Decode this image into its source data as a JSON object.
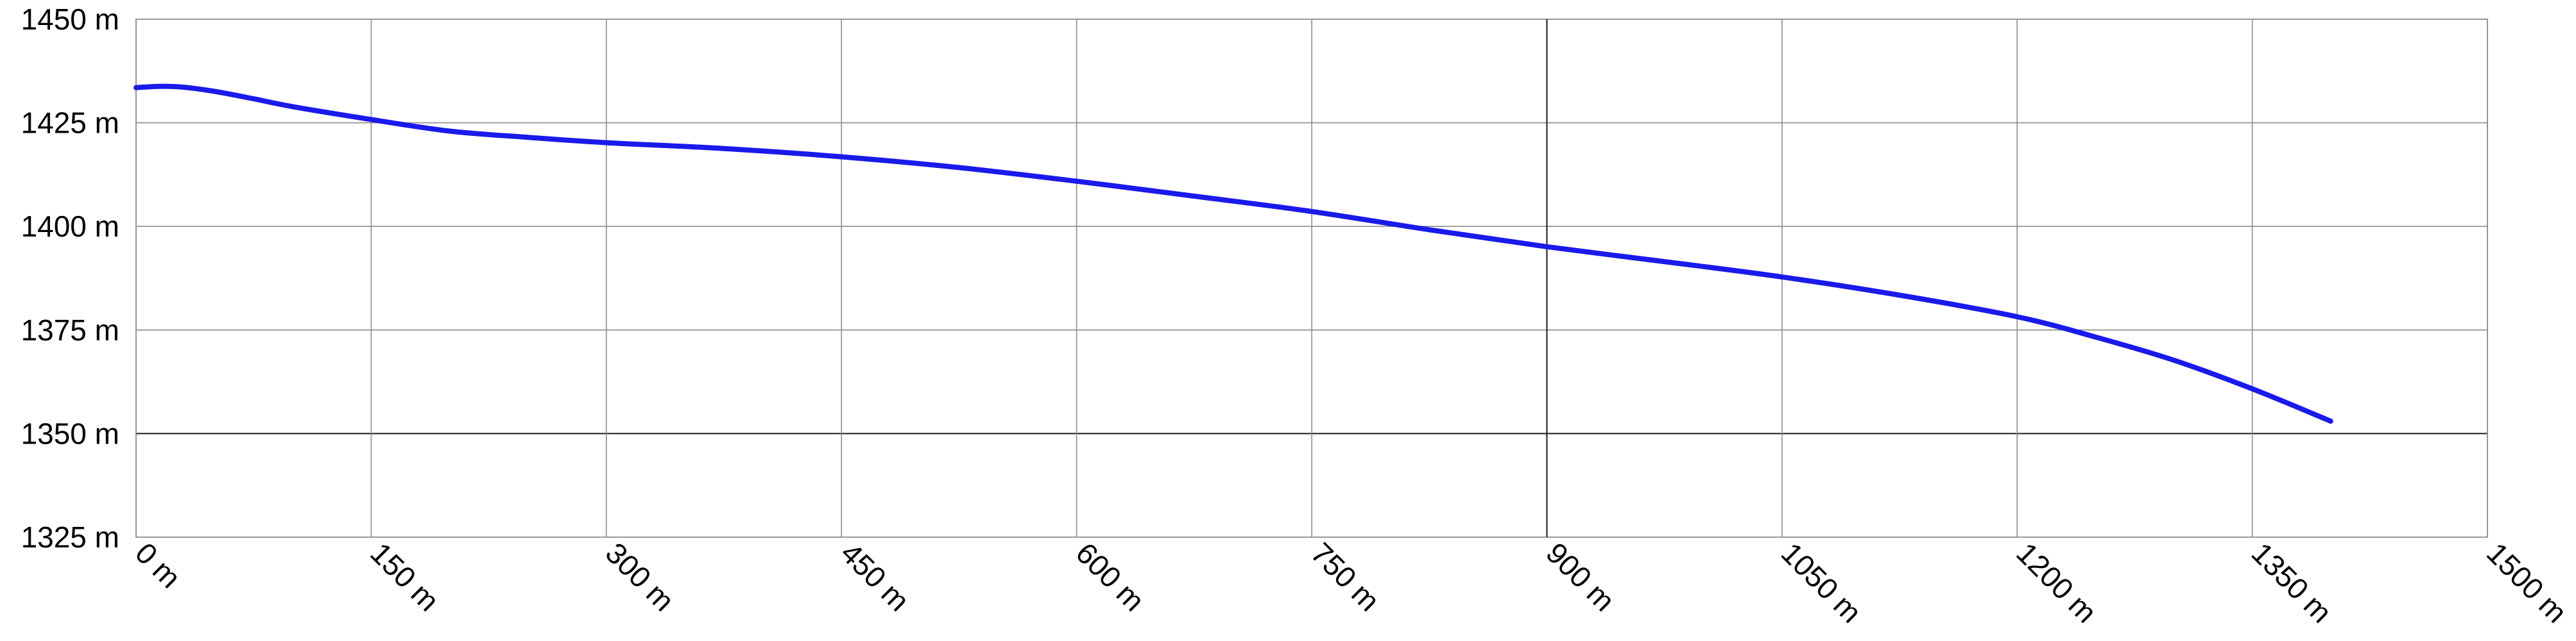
{
  "chart_data": {
    "type": "line",
    "title": "",
    "xlabel": "",
    "ylabel": "",
    "xlim": [
      0,
      1500
    ],
    "ylim": [
      1325,
      1450
    ],
    "grid": true,
    "x_ticks": [
      0,
      150,
      300,
      450,
      600,
      750,
      900,
      1050,
      1200,
      1350,
      1500
    ],
    "x_tick_labels": [
      "0 m",
      "150 m",
      "300 m",
      "450 m",
      "600 m",
      "750 m",
      "900 m",
      "1050 m",
      "1200 m",
      "1350 m",
      "1500 m"
    ],
    "y_ticks": [
      1325,
      1350,
      1375,
      1400,
      1425,
      1450
    ],
    "y_tick_labels": [
      "1325 m",
      "1350 m",
      "1375 m",
      "1400 m",
      "1425 m",
      "1450 m"
    ],
    "series": [
      {
        "color": "#1a1aeb",
        "x": [
          0,
          15,
          30,
          50,
          75,
          100,
          150,
          200,
          250,
          300,
          375,
          450,
          525,
          600,
          675,
          750,
          825,
          900,
          975,
          1050,
          1125,
          1200,
          1250,
          1300,
          1350,
          1400
        ],
        "y": [
          1433.5,
          1433.8,
          1433.6,
          1432.6,
          1430.8,
          1428.9,
          1425.8,
          1423.0,
          1421.5,
          1420.2,
          1418.8,
          1416.8,
          1414.2,
          1410.9,
          1407.3,
          1403.6,
          1399.2,
          1395.1,
          1391.5,
          1387.8,
          1383.4,
          1378.2,
          1373.3,
          1367.7,
          1360.8,
          1353.0
        ]
      }
    ]
  }
}
